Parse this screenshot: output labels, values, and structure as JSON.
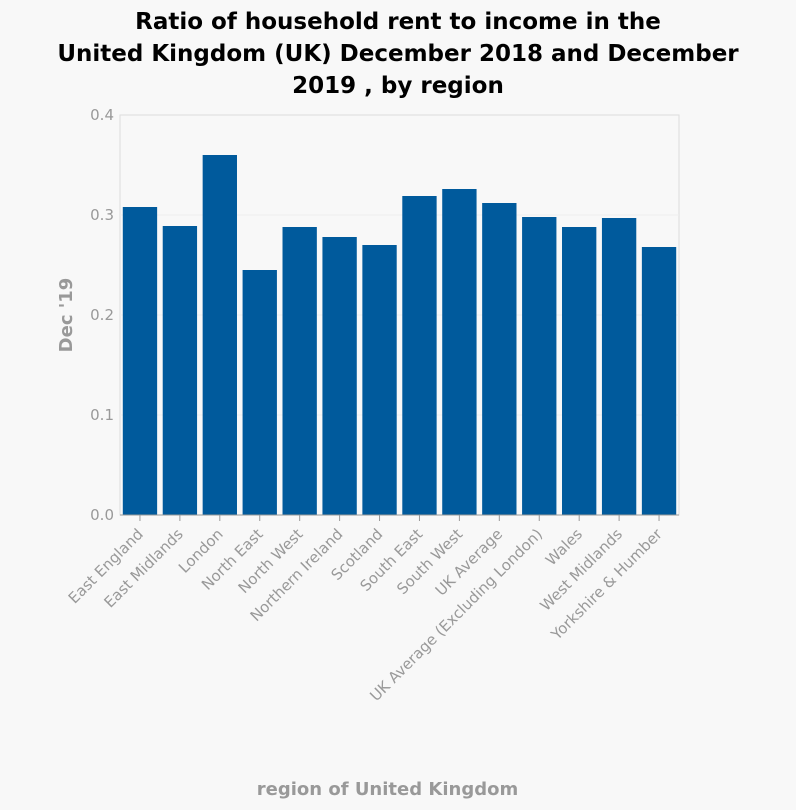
{
  "chart_data": {
    "type": "bar",
    "title_lines": [
      "Ratio of household rent to income in the",
      "United Kingdom (UK) December 2018 and December",
      "2019 , by region"
    ],
    "xlabel": "region of United Kingdom",
    "ylabel": "Dec '19",
    "ylim": [
      0,
      0.4
    ],
    "yticks": [
      "0.0",
      "0.1",
      "0.2",
      "0.3",
      "0.4"
    ],
    "ytick_values": [
      0,
      0.1,
      0.2,
      0.3,
      0.4
    ],
    "grid": true,
    "bar_color": "#005a9c",
    "categories": [
      "East England",
      "East Midlands",
      "London",
      "North East",
      "North West",
      "Northern Ireland",
      "Scotland",
      "South East",
      "South West",
      "UK Average",
      "UK Average (Excluding London)",
      "Wales",
      "West Midlands",
      "Yorkshire & Humber"
    ],
    "values": [
      0.308,
      0.289,
      0.36,
      0.245,
      0.288,
      0.278,
      0.27,
      0.319,
      0.326,
      0.312,
      0.298,
      0.288,
      0.297,
      0.268
    ]
  }
}
